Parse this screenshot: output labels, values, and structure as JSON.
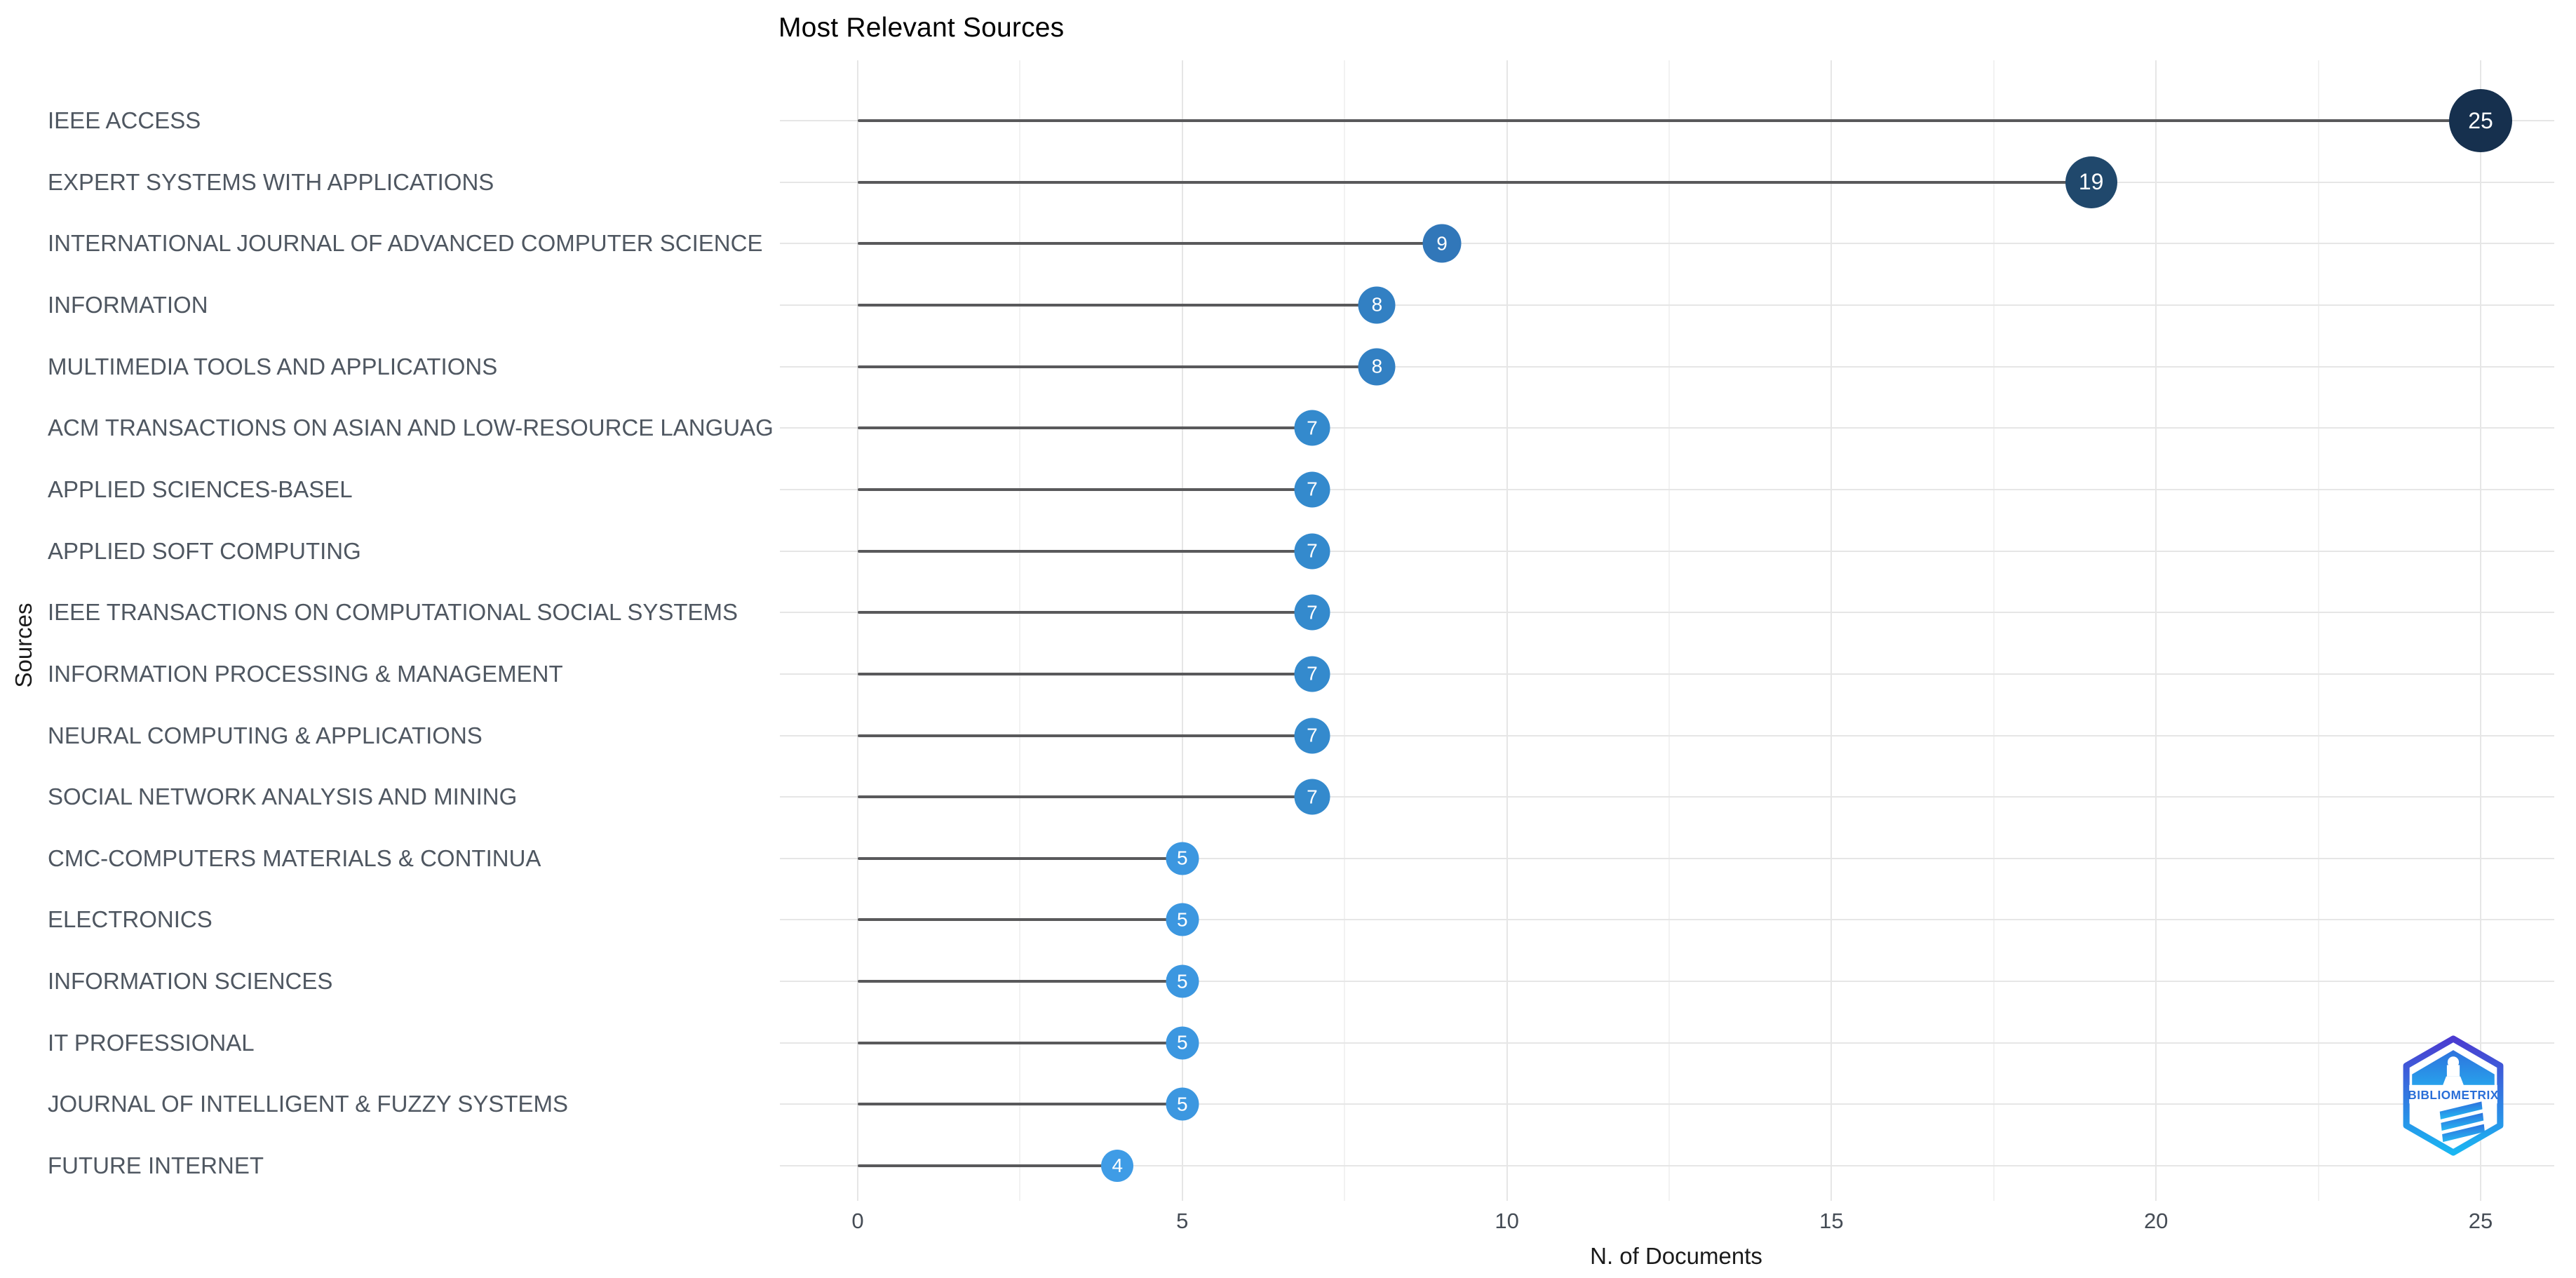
{
  "page": {
    "title": "Most Relevant Sources"
  },
  "chart_data": {
    "type": "lollipop",
    "title": "Most Relevant Sources",
    "xlabel": "N. of Documents",
    "ylabel": "Sources",
    "xlim": [
      0,
      25
    ],
    "x_major_ticks": [
      0,
      5,
      10,
      15,
      20,
      25
    ],
    "x_minor_ticks": [
      2.5,
      7.5,
      12.5,
      17.5,
      22.5
    ],
    "grid": "major and minor vertical gridlines, one horizontal gridline per category",
    "legend": "none",
    "categories": [
      "IEEE ACCESS",
      "EXPERT SYSTEMS WITH APPLICATIONS",
      "INTERNATIONAL JOURNAL OF ADVANCED COMPUTER SCIENCE",
      "INFORMATION",
      "MULTIMEDIA TOOLS AND APPLICATIONS",
      "ACM TRANSACTIONS ON ASIAN AND LOW-RESOURCE LANGUAG",
      "APPLIED SCIENCES-BASEL",
      "APPLIED SOFT COMPUTING",
      "IEEE TRANSACTIONS ON COMPUTATIONAL SOCIAL SYSTEMS",
      "INFORMATION PROCESSING & MANAGEMENT",
      "NEURAL COMPUTING & APPLICATIONS",
      "SOCIAL NETWORK ANALYSIS AND MINING",
      "CMC-COMPUTERS MATERIALS & CONTINUA",
      "ELECTRONICS",
      "INFORMATION SCIENCES",
      "IT PROFESSIONAL",
      "JOURNAL OF INTELLIGENT & FUZZY SYSTEMS",
      "FUTURE INTERNET"
    ],
    "values": [
      25,
      19,
      9,
      8,
      8,
      7,
      7,
      7,
      7,
      7,
      7,
      7,
      5,
      5,
      5,
      5,
      5,
      4
    ]
  },
  "style": {
    "dot_colors": {
      "25": "#16304e",
      "19": "#20486c",
      "9": "#3177b9",
      "8": "#3280c3",
      "7": "#348acd",
      "5": "#3c97e0",
      "4": "#3f9ce6"
    },
    "dot_radii": {
      "25": 45,
      "19": 37,
      "9": 27.5,
      "8": 26.5,
      "7": 25.5,
      "5": 23.5,
      "4": 23
    },
    "dot_label_color": "#ffffff",
    "stem_color": "#59595b",
    "grid_major_color": "#e6e6e6",
    "grid_minor_color": "#f2f2f2",
    "category_label_color": "#4f5761",
    "tick_label_color": "#454c55",
    "logo_gradient_top": "#4b3bd0",
    "logo_gradient_bottom": "#1ab6f2",
    "logo_text_color": "#2a6fd8"
  },
  "logo": {
    "text": "BIBLIOMETRIX"
  }
}
